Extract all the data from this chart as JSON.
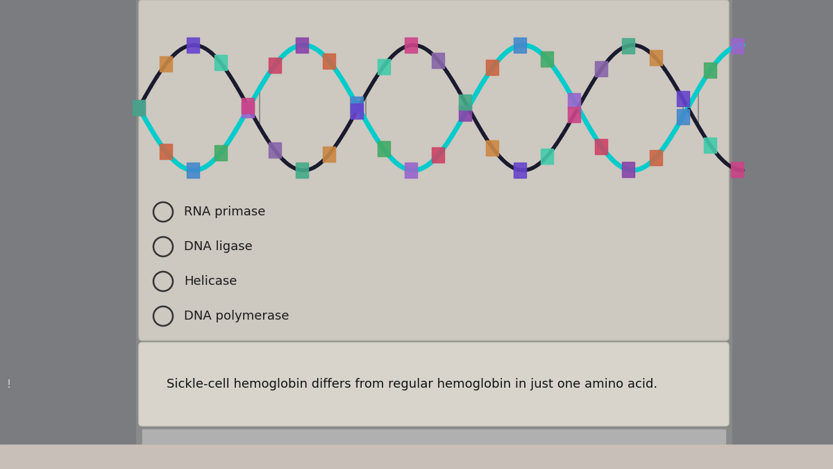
{
  "bg_outer": "#8a8a8a",
  "bg_left_panel": "#7a7c80",
  "bg_right_panel": "#7a7c80",
  "bg_main_card": "#cdc8c0",
  "bg_answer_card": "#d8d4cc",
  "bg_bottom_area": "#b0b0b0",
  "bg_very_bottom": "#c8c0b8",
  "options": [
    "RNA primase",
    "DNA ligase",
    "Helicase",
    "DNA polymerase"
  ],
  "answer_text": "Sickle-cell hemoglobin differs from regular hemoglobin in just one amino acid.",
  "circle_color": "#333333",
  "text_color": "#1a1a1a",
  "answer_text_color": "#111111",
  "option_fontsize": 13,
  "answer_fontsize": 13,
  "strand1_color": "#00cccc",
  "strand2_color": "#1a1a2e",
  "strand3_color": "#228b22",
  "helix_lw1": 5,
  "helix_lw2": 4
}
